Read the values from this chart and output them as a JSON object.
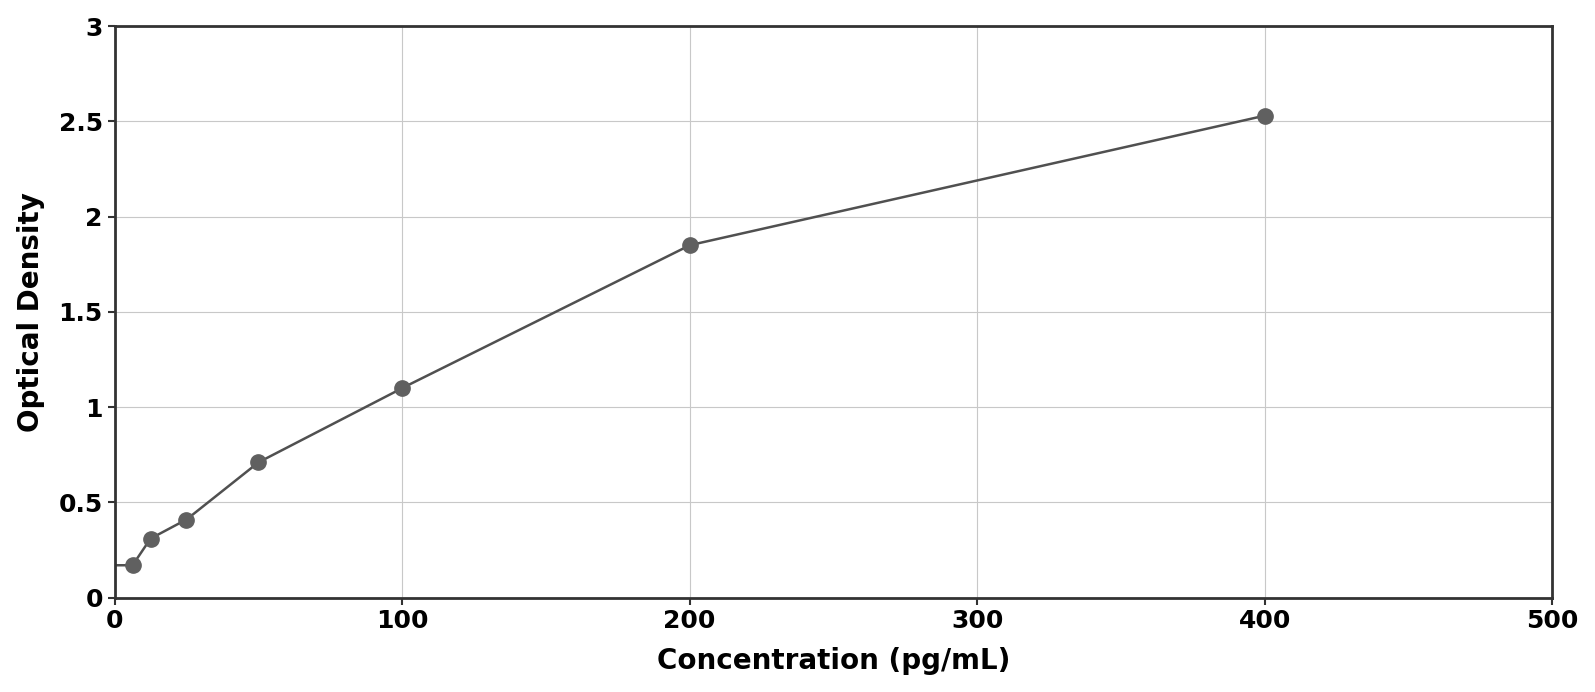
{
  "x_data": [
    6.25,
    12.5,
    25,
    50,
    100,
    200,
    400
  ],
  "y_data": [
    0.17,
    0.31,
    0.41,
    0.71,
    1.1,
    1.85,
    2.53
  ],
  "xlabel": "Concentration (pg/mL)",
  "ylabel": "Optical Density",
  "xlim": [
    0,
    500
  ],
  "ylim": [
    0,
    3
  ],
  "xticks": [
    0,
    100,
    200,
    300,
    400,
    500
  ],
  "yticks": [
    0,
    0.5,
    1.0,
    1.5,
    2.0,
    2.5,
    3.0
  ],
  "marker_color": "#606060",
  "line_color": "#505050",
  "marker_size": 11,
  "line_width": 1.8,
  "grid_color": "#c8c8c8",
  "background_color": "#ffffff",
  "figure_background": "#ffffff",
  "xlabel_fontsize": 20,
  "ylabel_fontsize": 20,
  "tick_fontsize": 18,
  "border_color": "#333333",
  "curve_x_end": 400
}
